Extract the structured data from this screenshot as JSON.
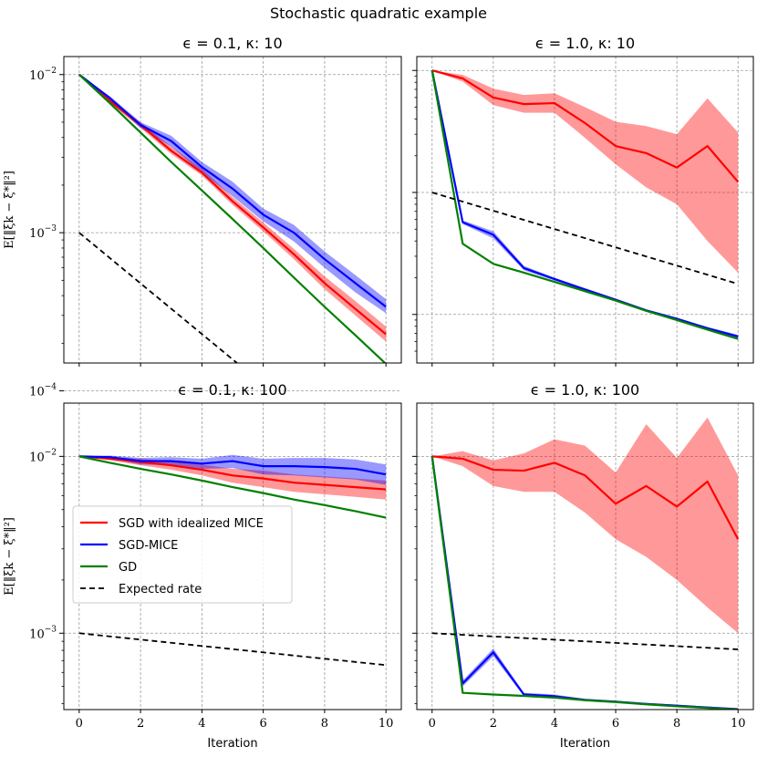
{
  "figure_title": "Stochastic quadratic example",
  "chart_data": [
    {
      "type": "line",
      "title": "ϵ = 0.1, κ: 10",
      "xlabel": "",
      "ylabel": "E[‖ξk − ξ*‖²]",
      "xlim": [
        -0.5,
        10.5
      ],
      "ylim": [
        0.00015,
        0.013
      ],
      "yscale": "log",
      "series": [
        {
          "name": "SGD with idealized MICE",
          "color": "#ff0000",
          "x": [
            0,
            1,
            2,
            3,
            4,
            5,
            6,
            7,
            8,
            9,
            10
          ],
          "values": [
            0.01,
            0.0068,
            0.0048,
            0.0033,
            0.0024,
            0.00158,
            0.00108,
            0.00073,
            0.00048,
            0.00033,
            0.000228
          ],
          "band_lo": [
            0.01,
            0.0066,
            0.0046,
            0.00315,
            0.0023,
            0.0015,
            0.00102,
            0.00068,
            0.00044,
            0.0003,
            0.000205
          ],
          "band_hi": [
            0.01,
            0.007,
            0.005,
            0.0035,
            0.00255,
            0.00168,
            0.00116,
            0.00079,
            0.00053,
            0.00037,
            0.000255
          ]
        },
        {
          "name": "SGD-MICE",
          "color": "#0000ff",
          "x": [
            0,
            1,
            2,
            3,
            4,
            5,
            6,
            7,
            8,
            9,
            10
          ],
          "values": [
            0.01,
            0.0071,
            0.0048,
            0.0038,
            0.0026,
            0.0019,
            0.0013,
            0.001,
            0.00068,
            0.00048,
            0.00034
          ],
          "band_lo": [
            0.01,
            0.0069,
            0.0046,
            0.0035,
            0.0024,
            0.0017,
            0.00118,
            0.00088,
            0.0006,
            0.00042,
            0.00031
          ],
          "band_hi": [
            0.01,
            0.0073,
            0.005,
            0.0041,
            0.0028,
            0.0021,
            0.00142,
            0.00112,
            0.00076,
            0.00054,
            0.00038
          ]
        },
        {
          "name": "GD",
          "color": "#008000",
          "x": [
            0,
            1,
            2,
            3,
            4,
            5,
            6,
            7,
            8,
            9,
            10
          ],
          "values": [
            0.01,
            0.0066,
            0.0043,
            0.0028,
            0.00185,
            0.00122,
            0.0008,
            0.00052,
            0.00034,
            0.000225,
            0.000148
          ]
        },
        {
          "name": "Expected rate",
          "color": "#000000",
          "dashed": true,
          "x": [
            0,
            10
          ],
          "values": [
            0.001,
            2.5e-05
          ]
        }
      ]
    },
    {
      "type": "line",
      "title": "ϵ = 1.0, κ: 10",
      "xlabel": "",
      "ylabel": "",
      "xlim": [
        -0.5,
        10.5
      ],
      "ylim": [
        4e-05,
        0.013
      ],
      "yscale": "log",
      "series": [
        {
          "name": "SGD with idealized MICE",
          "color": "#ff0000",
          "x": [
            0,
            1,
            2,
            3,
            4,
            5,
            6,
            7,
            8,
            9,
            10
          ],
          "values": [
            0.01,
            0.0086,
            0.006,
            0.0053,
            0.0054,
            0.0037,
            0.0024,
            0.0021,
            0.0016,
            0.0024,
            0.00122
          ],
          "band_lo": [
            0.01,
            0.0081,
            0.0052,
            0.0045,
            0.0045,
            0.0028,
            0.0017,
            0.0011,
            0.0008,
            0.0004,
            0.00022
          ],
          "band_hi": [
            0.01,
            0.0092,
            0.0071,
            0.0063,
            0.0065,
            0.005,
            0.0038,
            0.0035,
            0.003,
            0.0059,
            0.0031
          ]
        },
        {
          "name": "SGD-MICE",
          "color": "#0000ff",
          "x": [
            0,
            1,
            2,
            3,
            4,
            5,
            6,
            7,
            8,
            9,
            10
          ],
          "values": [
            0.01,
            0.00057,
            0.00045,
            0.00024,
            0.000195,
            0.00016,
            0.000132,
            0.000108,
            9.2e-05,
            7.7e-05,
            6.6e-05
          ],
          "band_lo": [
            0.01,
            0.00055,
            0.00042,
            0.00023,
            0.00019,
            0.000156,
            0.000129,
            0.000106,
            9e-05,
            7.5e-05,
            6.4e-05
          ],
          "band_hi": [
            0.01,
            0.00059,
            0.00048,
            0.00025,
            0.0002,
            0.000164,
            0.000135,
            0.00011,
            9.4e-05,
            7.9e-05,
            6.8e-05
          ]
        },
        {
          "name": "GD",
          "color": "#008000",
          "x": [
            0,
            1,
            2,
            3,
            4,
            5,
            6,
            7,
            8,
            9,
            10
          ],
          "values": [
            0.01,
            0.00038,
            0.00026,
            0.00022,
            0.000185,
            0.000155,
            0.00013,
            0.000107,
            9e-05,
            7.5e-05,
            6.3e-05
          ]
        },
        {
          "name": "Expected rate",
          "color": "#000000",
          "dashed": true,
          "x": [
            0,
            10
          ],
          "values": [
            0.001,
            0.000178
          ]
        }
      ]
    },
    {
      "type": "line",
      "title": "ϵ = 0.1, κ: 100",
      "xlabel": "Iteration",
      "ylabel": "E[‖ξk − ξ*‖²]",
      "xlim": [
        -0.5,
        10.5
      ],
      "ylim": [
        0.00037,
        0.02
      ],
      "yscale": "log",
      "series": [
        {
          "name": "SGD with idealized MICE",
          "color": "#ff0000",
          "x": [
            0,
            1,
            2,
            3,
            4,
            5,
            6,
            7,
            8,
            9,
            10
          ],
          "values": [
            0.01,
            0.0097,
            0.0093,
            0.0089,
            0.0084,
            0.0078,
            0.0075,
            0.0071,
            0.0069,
            0.0067,
            0.0065
          ],
          "band_lo": [
            0.01,
            0.0095,
            0.0089,
            0.0084,
            0.0078,
            0.0071,
            0.0067,
            0.0063,
            0.0061,
            0.0059,
            0.0057
          ],
          "band_hi": [
            0.01,
            0.0099,
            0.0097,
            0.0094,
            0.009,
            0.0085,
            0.0083,
            0.0079,
            0.0077,
            0.0075,
            0.0073
          ]
        },
        {
          "name": "SGD-MICE",
          "color": "#0000ff",
          "x": [
            0,
            1,
            2,
            3,
            4,
            5,
            6,
            7,
            8,
            9,
            10
          ],
          "values": [
            0.01,
            0.0099,
            0.0094,
            0.0094,
            0.0091,
            0.0094,
            0.0088,
            0.0088,
            0.0087,
            0.0085,
            0.0079
          ],
          "band_lo": [
            0.01,
            0.0097,
            0.009,
            0.0089,
            0.0085,
            0.0086,
            0.0079,
            0.0078,
            0.0076,
            0.0074,
            0.0069
          ],
          "band_hi": [
            0.01,
            0.0101,
            0.0098,
            0.0099,
            0.0097,
            0.0102,
            0.0097,
            0.0098,
            0.0098,
            0.0096,
            0.009
          ]
        },
        {
          "name": "GD",
          "color": "#008000",
          "x": [
            0,
            1,
            2,
            3,
            4,
            5,
            6,
            7,
            8,
            9,
            10
          ],
          "values": [
            0.01,
            0.0092,
            0.0085,
            0.0079,
            0.0073,
            0.0067,
            0.0062,
            0.0057,
            0.0053,
            0.0049,
            0.0045
          ]
        },
        {
          "name": "Expected rate",
          "color": "#000000",
          "dashed": true,
          "x": [
            0,
            10
          ],
          "values": [
            0.001,
            0.00066
          ]
        }
      ]
    },
    {
      "type": "line",
      "title": "ϵ = 1.0, κ: 100",
      "xlabel": "Iteration",
      "ylabel": "",
      "xlim": [
        -0.5,
        10.5
      ],
      "ylim": [
        0.00037,
        0.02
      ],
      "yscale": "log",
      "series": [
        {
          "name": "SGD with idealized MICE",
          "color": "#ff0000",
          "x": [
            0,
            1,
            2,
            3,
            4,
            5,
            6,
            7,
            8,
            9,
            10
          ],
          "values": [
            0.01,
            0.0097,
            0.0084,
            0.0083,
            0.0092,
            0.0078,
            0.0054,
            0.0068,
            0.0052,
            0.0072,
            0.0034
          ],
          "band_lo": [
            0.01,
            0.0088,
            0.0068,
            0.0063,
            0.0063,
            0.0048,
            0.0034,
            0.0027,
            0.002,
            0.0014,
            0.001
          ],
          "band_hi": [
            0.01,
            0.0107,
            0.0095,
            0.0104,
            0.0125,
            0.0115,
            0.0081,
            0.0152,
            0.0098,
            0.0166,
            0.0078
          ]
        },
        {
          "name": "SGD-MICE",
          "color": "#0000ff",
          "x": [
            0,
            1,
            2,
            3,
            4,
            5,
            6,
            7,
            8,
            9,
            10
          ],
          "values": [
            0.01,
            0.00052,
            0.00078,
            0.00045,
            0.00044,
            0.00042,
            0.00041,
            0.000398,
            0.000389,
            0.00038,
            0.000372
          ],
          "band_lo": [
            0.01,
            0.0005,
            0.00074,
            0.00044,
            0.00043,
            0.000415,
            0.000405,
            0.000393,
            0.000384,
            0.000375,
            0.000367
          ],
          "band_hi": [
            0.01,
            0.00054,
            0.00082,
            0.00046,
            0.00045,
            0.000425,
            0.000415,
            0.000403,
            0.000394,
            0.000385,
            0.000377
          ]
        },
        {
          "name": "GD",
          "color": "#008000",
          "x": [
            0,
            1,
            2,
            3,
            4,
            5,
            6,
            7,
            8,
            9,
            10
          ],
          "values": [
            0.01,
            0.00046,
            0.00045,
            0.000442,
            0.000432,
            0.000418,
            0.000408,
            0.000396,
            0.000386,
            0.000378,
            0.00037
          ]
        },
        {
          "name": "Expected rate",
          "color": "#000000",
          "dashed": true,
          "x": [
            0,
            10
          ],
          "values": [
            0.001,
            0.00081
          ]
        }
      ]
    }
  ],
  "legend": {
    "entries": [
      {
        "label": "SGD with idealized MICE",
        "color": "#ff0000",
        "dashed": false
      },
      {
        "label": "SGD-MICE",
        "color": "#0000ff",
        "dashed": false
      },
      {
        "label": "GD",
        "color": "#008000",
        "dashed": false
      },
      {
        "label": "Expected rate",
        "color": "#000000",
        "dashed": true
      }
    ]
  },
  "x_ticks": [
    "0",
    "2",
    "4",
    "6",
    "8",
    "10"
  ],
  "y_ticks": {
    "panel1": [
      {
        "value": 0.01,
        "base": "10",
        "exp": "−2"
      },
      {
        "value": 0.001,
        "base": "10",
        "exp": "−3"
      },
      {
        "value": 0.0001,
        "base": "10",
        "exp": "−4"
      }
    ],
    "panel3": [
      {
        "value": 0.01,
        "base": "10",
        "exp": "−2"
      },
      {
        "value": 0.001,
        "base": "10",
        "exp": "−3"
      }
    ]
  }
}
